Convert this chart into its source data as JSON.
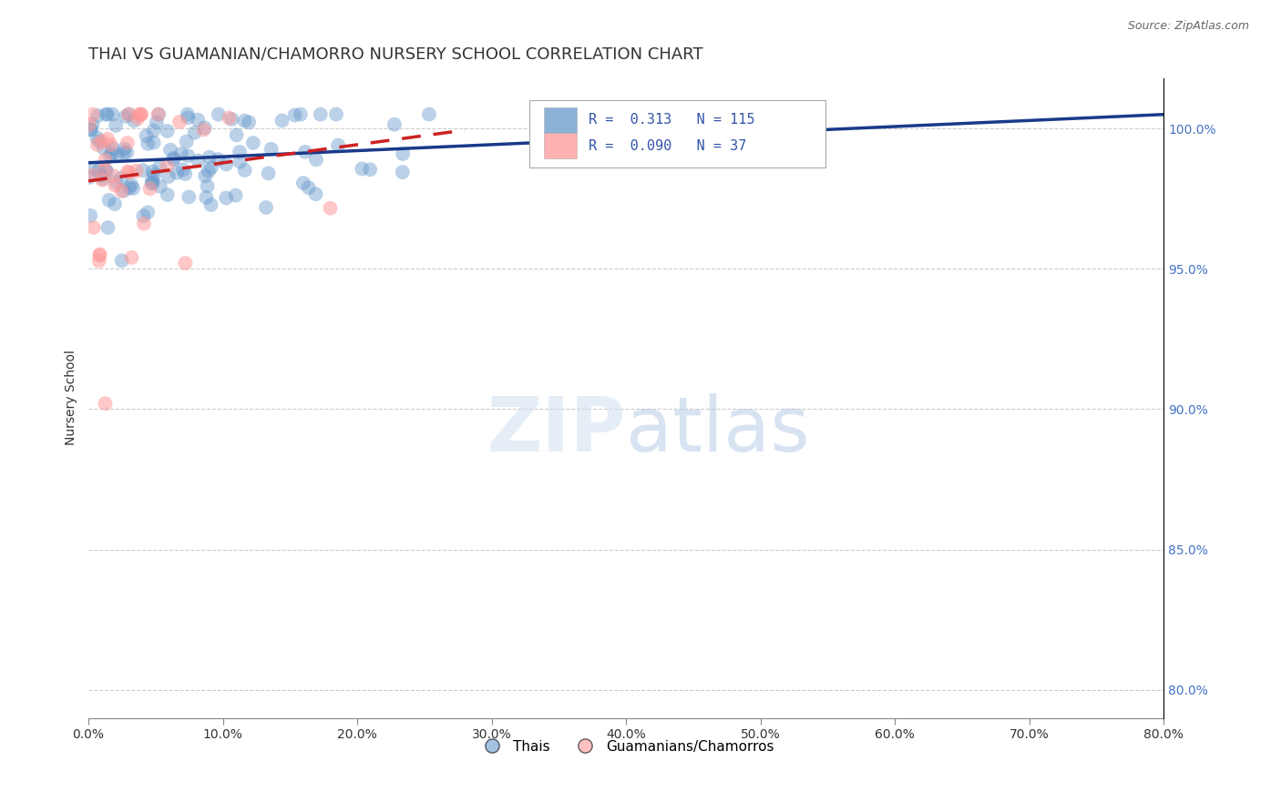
{
  "title": "THAI VS GUAMANIAN/CHAMORRO NURSERY SCHOOL CORRELATION CHART",
  "source": "Source: ZipAtlas.com",
  "ylabel": "Nursery School",
  "xlim": [
    0.0,
    80.0
  ],
  "ylim": [
    79.0,
    101.8
  ],
  "legend_labels": [
    "Thais",
    "Guamanians/Chamorros"
  ],
  "thai_color": "#6699CC",
  "guam_color": "#FF9999",
  "trend_blue": "#1a3a8a",
  "trend_red": "#cc2222",
  "R_thai": 0.313,
  "N_thai": 115,
  "R_guam": 0.09,
  "N_guam": 37,
  "background_color": "#ffffff",
  "grid_color": "#cccccc",
  "title_fontsize": 13,
  "tick_fontsize": 10,
  "y_ticks": [
    80,
    85,
    90,
    95,
    100
  ],
  "x_ticks": [
    0,
    10,
    20,
    30,
    40,
    50,
    60,
    70,
    80
  ]
}
